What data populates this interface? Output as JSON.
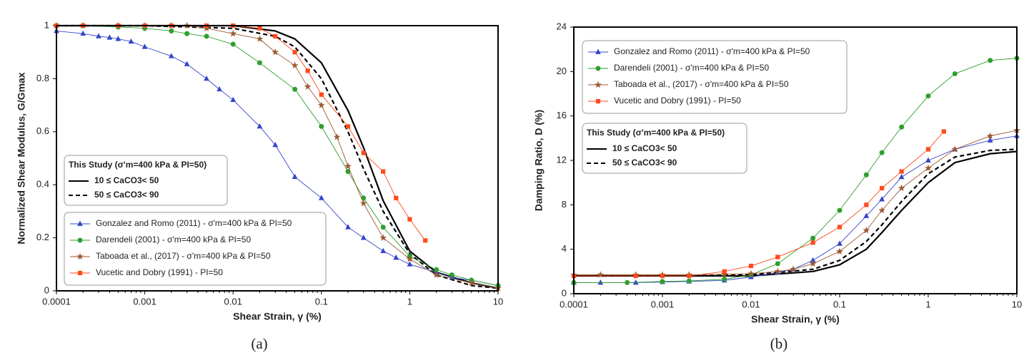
{
  "chart_data": [
    {
      "type": "line",
      "caption": "(a)",
      "x_label": "Shear Strain, γ (%)",
      "y_label": "Normalized Shear Modulus, G/Gmax",
      "xscale": "log",
      "xlim": [
        0.0001,
        10
      ],
      "xticks": [
        0.0001,
        0.001,
        0.01,
        0.1,
        1,
        10
      ],
      "ylim": [
        0,
        1
      ],
      "yticks": [
        0,
        0.2,
        0.4,
        0.6,
        0.8,
        1
      ],
      "series": [
        {
          "name": "Gonzalez and Romo (2011) - σ'm=400 kPa & PI=50",
          "color": "#3446c8",
          "marker": "triangle",
          "x": [
            0.0001,
            0.0002,
            0.0003,
            0.0004,
            0.0005,
            0.0007,
            0.001,
            0.002,
            0.003,
            0.005,
            0.007,
            0.01,
            0.02,
            0.03,
            0.05,
            0.1,
            0.2,
            0.3,
            0.5,
            0.7,
            1,
            2,
            3,
            5,
            10
          ],
          "values": [
            0.98,
            0.97,
            0.96,
            0.955,
            0.95,
            0.94,
            0.92,
            0.885,
            0.855,
            0.8,
            0.76,
            0.72,
            0.62,
            0.55,
            0.43,
            0.35,
            0.24,
            0.2,
            0.15,
            0.125,
            0.1,
            0.07,
            0.05,
            0.04,
            0.02
          ]
        },
        {
          "name": "Darendeli (2001) - σ'm=400 kPa & PI=50",
          "color": "#2e9e2e",
          "marker": "circle",
          "x": [
            0.0001,
            0.0002,
            0.0005,
            0.001,
            0.002,
            0.003,
            0.005,
            0.01,
            0.02,
            0.05,
            0.1,
            0.2,
            0.3,
            0.5,
            1,
            2,
            3,
            5,
            10
          ],
          "values": [
            1,
            1,
            0.995,
            0.99,
            0.98,
            0.97,
            0.96,
            0.93,
            0.86,
            0.76,
            0.62,
            0.45,
            0.35,
            0.24,
            0.13,
            0.08,
            0.06,
            0.04,
            0.02
          ]
        },
        {
          "name": "Taboada et al., (2017) - σ'm=400 kPa & PI=50",
          "color": "#9c5a32",
          "marker": "star",
          "x": [
            0.0001,
            0.0002,
            0.0005,
            0.001,
            0.002,
            0.003,
            0.005,
            0.01,
            0.02,
            0.03,
            0.05,
            0.07,
            0.1,
            0.15,
            0.2,
            0.3,
            0.5,
            1,
            2,
            5,
            10
          ],
          "values": [
            1,
            1,
            1,
            1,
            1,
            1,
            0.99,
            0.97,
            0.95,
            0.9,
            0.85,
            0.77,
            0.7,
            0.58,
            0.47,
            0.33,
            0.2,
            0.12,
            0.06,
            0.03,
            0.01
          ]
        },
        {
          "name": "Vucetic and Dobry (1991) - PI=50",
          "color": "#ff4a1c",
          "marker": "square",
          "x": [
            0.0001,
            0.0002,
            0.0005,
            0.001,
            0.002,
            0.005,
            0.01,
            0.02,
            0.03,
            0.05,
            0.07,
            0.1,
            0.2,
            0.3,
            0.5,
            0.7,
            1,
            1.5
          ],
          "values": [
            1,
            1,
            1,
            1,
            1,
            1,
            1,
            0.99,
            0.96,
            0.9,
            0.83,
            0.74,
            0.62,
            0.52,
            0.45,
            0.35,
            0.27,
            0.19
          ]
        }
      ],
      "study": {
        "title": "This Study (σ'm=400 kPa & PI=50)",
        "series": [
          {
            "name": "10 ≤ CaCO3< 50",
            "color": "#000000",
            "dashed": false,
            "x": [
              0.0001,
              0.001,
              0.01,
              0.03,
              0.05,
              0.1,
              0.2,
              0.3,
              0.5,
              1,
              2,
              5,
              10
            ],
            "values": [
              1,
              1,
              1,
              0.98,
              0.95,
              0.86,
              0.68,
              0.54,
              0.34,
              0.15,
              0.07,
              0.03,
              0.01
            ]
          },
          {
            "name": "50 ≤ CaCO3< 90",
            "color": "#000000",
            "dashed": true,
            "x": [
              0.0001,
              0.001,
              0.01,
              0.03,
              0.05,
              0.1,
              0.2,
              0.3,
              0.5,
              1,
              2,
              5,
              10
            ],
            "values": [
              1,
              1,
              0.99,
              0.96,
              0.92,
              0.8,
              0.6,
              0.46,
              0.3,
              0.14,
              0.06,
              0.02,
              0.01
            ]
          }
        ]
      }
    },
    {
      "type": "line",
      "caption": "(b)",
      "x_label": "Shear Strain, γ (%)",
      "y_label": "Damping Ratio, D (%)",
      "xscale": "log",
      "xlim": [
        0.0001,
        10
      ],
      "xticks": [
        0.0001,
        0.001,
        0.01,
        0.1,
        1,
        10
      ],
      "ylim": [
        0,
        24
      ],
      "yticks": [
        0,
        4,
        8,
        12,
        16,
        20,
        24
      ],
      "series": [
        {
          "name": "Gonzalez and Romo (2011) - σ'm=400 kPa & PI=50",
          "color": "#3446c8",
          "marker": "triangle",
          "x": [
            0.0001,
            0.0002,
            0.0005,
            0.001,
            0.002,
            0.005,
            0.01,
            0.02,
            0.03,
            0.05,
            0.1,
            0.2,
            0.3,
            0.5,
            1,
            2,
            5,
            10
          ],
          "values": [
            1,
            1,
            1,
            1.05,
            1.1,
            1.2,
            1.5,
            1.9,
            2.2,
            3,
            4.5,
            7,
            8.5,
            10.5,
            12,
            13,
            13.8,
            14.2
          ]
        },
        {
          "name": "Darendeli (2001) - σ'm=400 kPa & PI=50",
          "color": "#2e9e2e",
          "marker": "circle",
          "x": [
            0.0001,
            0.0004,
            0.001,
            0.002,
            0.005,
            0.01,
            0.02,
            0.05,
            0.1,
            0.2,
            0.3,
            0.5,
            1,
            2,
            5,
            10
          ],
          "values": [
            1,
            1,
            1.1,
            1.15,
            1.3,
            1.7,
            2.7,
            5,
            7.5,
            10.7,
            12.7,
            15,
            17.8,
            19.8,
            21,
            21.2
          ]
        },
        {
          "name": "Taboada et al., (2017) - σ'm=400 kPa & PI=50",
          "color": "#9c5a32",
          "marker": "star",
          "x": [
            0.0001,
            0.0002,
            0.0005,
            0.001,
            0.002,
            0.005,
            0.01,
            0.02,
            0.03,
            0.05,
            0.1,
            0.2,
            0.3,
            0.5,
            1,
            2,
            5,
            10
          ],
          "values": [
            1.7,
            1.7,
            1.7,
            1.7,
            1.7,
            1.75,
            1.8,
            2,
            2.2,
            2.7,
            3.8,
            5.7,
            7.5,
            9.5,
            11.3,
            13,
            14.2,
            14.7
          ]
        },
        {
          "name": "Vucetic and Dobry (1991) - PI=50",
          "color": "#ff4a1c",
          "marker": "square",
          "x": [
            0.0001,
            0.0005,
            0.001,
            0.002,
            0.005,
            0.01,
            0.02,
            0.05,
            0.1,
            0.2,
            0.3,
            0.5,
            1,
            1.5
          ],
          "values": [
            1.6,
            1.6,
            1.6,
            1.6,
            2,
            2.5,
            3.3,
            4.6,
            6,
            8,
            9.5,
            11,
            13,
            14.6
          ]
        }
      ],
      "study": {
        "title": "This Study (σ'm=400 kPa & PI=50)",
        "series": [
          {
            "name": "10 ≤ CaCO3< 50",
            "color": "#000000",
            "dashed": false,
            "x": [
              0.0001,
              0.001,
              0.01,
              0.05,
              0.1,
              0.2,
              0.3,
              0.5,
              1,
              2,
              5,
              10
            ],
            "values": [
              1.6,
              1.6,
              1.6,
              2,
              2.6,
              4,
              5.5,
              7.5,
              10,
              11.8,
              12.6,
              12.8
            ]
          },
          {
            "name": "50 ≤ CaCO3< 90",
            "color": "#000000",
            "dashed": true,
            "x": [
              0.0001,
              0.001,
              0.01,
              0.05,
              0.1,
              0.2,
              0.3,
              0.5,
              1,
              2,
              5,
              10
            ],
            "values": [
              1.6,
              1.6,
              1.7,
              2.2,
              3,
              4.7,
              6.2,
              8.3,
              10.8,
              12.3,
              12.9,
              13
            ]
          }
        ]
      }
    }
  ]
}
